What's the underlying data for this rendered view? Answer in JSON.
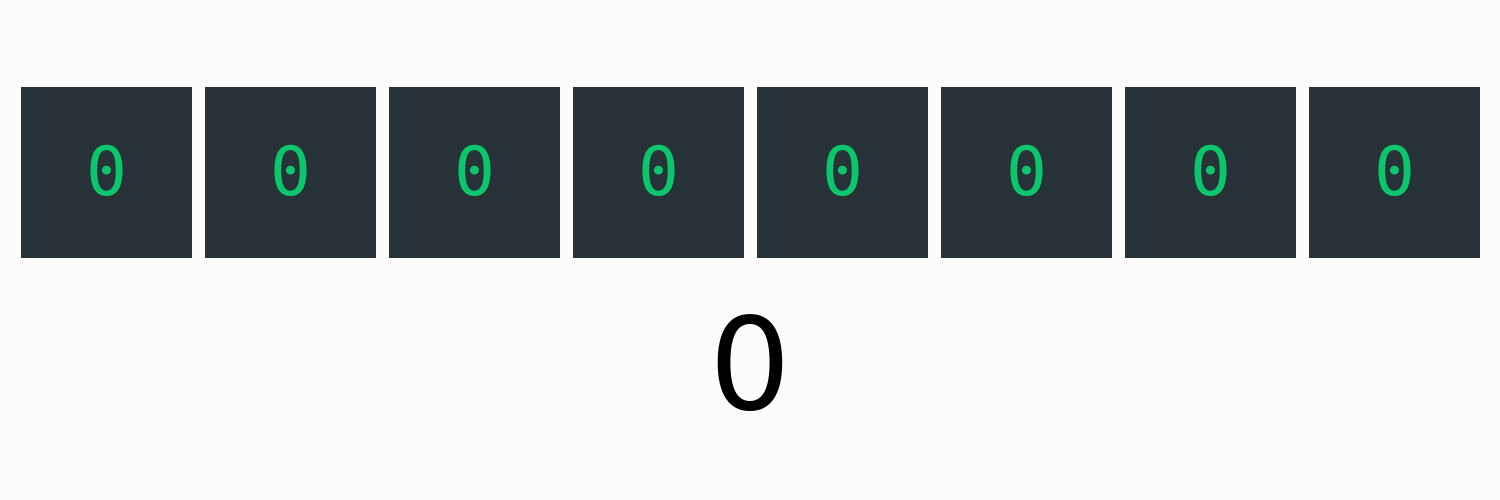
{
  "bits": [
    "0",
    "0",
    "0",
    "0",
    "0",
    "0",
    "0",
    "0"
  ],
  "decimal_value": "0",
  "colors": {
    "cell_background": "#263238",
    "digit_color": "#0cc66b",
    "page_background": "#fafbfa",
    "decimal_color": "#000000"
  }
}
